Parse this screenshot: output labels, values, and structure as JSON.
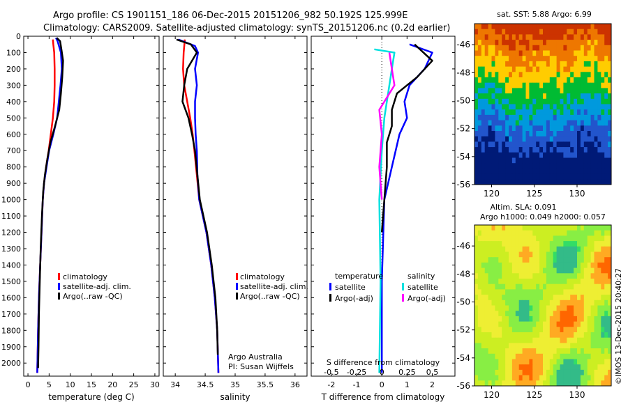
{
  "header": {
    "line1": "Argo profile: CS 1901151_186 06-Dec-2015 20151206_982 50.192S 125.999E",
    "line2": "Climatology: CARS2009. Satellite-adjusted climatology: synTS_20151206.nc (0.2d earlier)"
  },
  "colors": {
    "clim": "#ff0000",
    "sat": "#0000ff",
    "argo": "#000000",
    "sat_s": "#00e0e0",
    "argo_s": "#ff00ff"
  },
  "depth_axis": {
    "ylim": [
      2080,
      0
    ],
    "ticks": [
      0,
      100,
      200,
      300,
      400,
      500,
      600,
      700,
      800,
      900,
      1000,
      1100,
      1200,
      1300,
      1400,
      1500,
      1600,
      1700,
      1800,
      1900,
      2000
    ]
  },
  "chart_data": [
    {
      "type": "line",
      "xlabel": "temperature (deg C)",
      "xlim": [
        -1,
        31
      ],
      "xticks": [
        0,
        5,
        10,
        15,
        20,
        25,
        30
      ],
      "legend": [
        "climatology",
        "satellite-adj. clim.",
        "Argo(..raw -QC)"
      ],
      "series": [
        {
          "name": "climatology",
          "color": "#ff0000",
          "points": [
            [
              5.9,
              20
            ],
            [
              6.0,
              50
            ],
            [
              6.2,
              100
            ],
            [
              6.3,
              200
            ],
            [
              6.3,
              300
            ],
            [
              6.2,
              400
            ],
            [
              5.9,
              500
            ],
            [
              5.4,
              600
            ],
            [
              4.9,
              700
            ],
            [
              4.3,
              800
            ],
            [
              3.8,
              900
            ],
            [
              3.5,
              1000
            ],
            [
              3.2,
              1200
            ],
            [
              2.9,
              1400
            ],
            [
              2.6,
              1600
            ],
            [
              2.4,
              1800
            ],
            [
              2.2,
              2060
            ]
          ]
        },
        {
          "name": "satellite-adj. clim.",
          "color": "#0000ff",
          "points": [
            [
              6.6,
              10
            ],
            [
              7.0,
              30
            ],
            [
              7.8,
              100
            ],
            [
              8.0,
              200
            ],
            [
              7.7,
              300
            ],
            [
              7.3,
              400
            ],
            [
              6.9,
              500
            ],
            [
              6.0,
              600
            ],
            [
              5.0,
              700
            ],
            [
              4.4,
              800
            ],
            [
              3.8,
              900
            ],
            [
              3.5,
              1000
            ],
            [
              3.2,
              1200
            ],
            [
              2.9,
              1400
            ],
            [
              2.6,
              1600
            ],
            [
              2.4,
              1800
            ],
            [
              2.2,
              2060
            ]
          ]
        },
        {
          "name": "Argo(..raw -QC)",
          "color": "#000000",
          "points": [
            [
              6.8,
              10
            ],
            [
              7.6,
              30
            ],
            [
              7.9,
              80
            ],
            [
              8.3,
              150
            ],
            [
              8.1,
              250
            ],
            [
              7.8,
              350
            ],
            [
              7.4,
              450
            ],
            [
              6.4,
              550
            ],
            [
              5.3,
              650
            ],
            [
              4.6,
              750
            ],
            [
              4.0,
              850
            ],
            [
              3.6,
              950
            ],
            [
              3.3,
              1100
            ],
            [
              3.0,
              1300
            ],
            [
              2.8,
              1500
            ],
            [
              2.6,
              1700
            ],
            [
              2.5,
              1900
            ],
            [
              2.4,
              2030
            ]
          ]
        }
      ]
    },
    {
      "type": "line",
      "xlabel": "salinity",
      "xlim": [
        33.8,
        36.2
      ],
      "xticks": [
        34,
        34.5,
        35,
        35.5,
        36
      ],
      "legend": [
        "climatology",
        "satellite-adj. clim.",
        "Argo(..raw -QC)"
      ],
      "annotation": [
        "Argo Australia",
        "PI: Susan Wijffels"
      ],
      "series": [
        {
          "name": "climatology",
          "color": "#ff0000",
          "points": [
            [
              34.16,
              20
            ],
            [
              34.14,
              100
            ],
            [
              34.13,
              200
            ],
            [
              34.15,
              300
            ],
            [
              34.2,
              400
            ],
            [
              34.25,
              500
            ],
            [
              34.29,
              600
            ],
            [
              34.32,
              700
            ],
            [
              34.36,
              850
            ],
            [
              34.4,
              1000
            ],
            [
              34.52,
              1200
            ],
            [
              34.6,
              1400
            ],
            [
              34.66,
              1600
            ],
            [
              34.7,
              1800
            ],
            [
              34.72,
              2060
            ]
          ]
        },
        {
          "name": "satellite-adj. clim.",
          "color": "#0000ff",
          "points": [
            [
              34.05,
              20
            ],
            [
              34.33,
              60
            ],
            [
              34.38,
              100
            ],
            [
              34.33,
              200
            ],
            [
              34.36,
              300
            ],
            [
              34.33,
              400
            ],
            [
              34.33,
              500
            ],
            [
              34.34,
              600
            ],
            [
              34.36,
              700
            ],
            [
              34.37,
              850
            ],
            [
              34.4,
              1000
            ],
            [
              34.52,
              1200
            ],
            [
              34.6,
              1400
            ],
            [
              34.66,
              1600
            ],
            [
              34.7,
              1800
            ],
            [
              34.72,
              2060
            ]
          ]
        },
        {
          "name": "Argo(..raw -QC)",
          "color": "#000000",
          "points": [
            [
              34.02,
              20
            ],
            [
              34.26,
              50
            ],
            [
              34.36,
              100
            ],
            [
              34.2,
              200
            ],
            [
              34.15,
              300
            ],
            [
              34.12,
              400
            ],
            [
              34.22,
              500
            ],
            [
              34.28,
              600
            ],
            [
              34.33,
              700
            ],
            [
              34.37,
              850
            ],
            [
              34.41,
              1000
            ],
            [
              34.53,
              1200
            ],
            [
              34.61,
              1400
            ],
            [
              34.67,
              1600
            ],
            [
              34.7,
              1800
            ],
            [
              34.71,
              1950
            ]
          ]
        }
      ]
    },
    {
      "type": "line",
      "xlabel": "T difference from climatology",
      "xlim": [
        -2.8,
        2.9
      ],
      "xticks": [
        -2,
        -1,
        0,
        1,
        2
      ],
      "top_axis_label": "S difference from climatology",
      "top_ticks": [
        -0.5,
        -0.25,
        0,
        0.25,
        0.5
      ],
      "legend_headers": [
        "temperature",
        "salinity"
      ],
      "legend": [
        "satellite",
        "Argo(-adj)",
        "satellite",
        "Argo(-adj)"
      ],
      "series": [
        {
          "name": "satellite",
          "color": "#0000ff",
          "points": [
            [
              1.1,
              50
            ],
            [
              2.0,
              100
            ],
            [
              1.7,
              200
            ],
            [
              1.1,
              300
            ],
            [
              0.9,
              400
            ],
            [
              1.0,
              500
            ],
            [
              0.7,
              600
            ],
            [
              0.4,
              800
            ],
            [
              0.1,
              1000
            ],
            [
              0.0,
              1500
            ],
            [
              0.0,
              2060
            ]
          ]
        },
        {
          "name": "Argo(-adj)",
          "color": "#000000",
          "points": [
            [
              1.3,
              50
            ],
            [
              2.0,
              150
            ],
            [
              1.4,
              250
            ],
            [
              0.6,
              350
            ],
            [
              0.4,
              450
            ],
            [
              0.4,
              550
            ],
            [
              0.2,
              650
            ],
            [
              0.2,
              800
            ],
            [
              0.1,
              1000
            ],
            [
              0.0,
              1200
            ]
          ]
        },
        {
          "name": "satellite",
          "color": "#00e0e0",
          "points": [
            [
              -0.3,
              80
            ],
            [
              0.5,
              100
            ],
            [
              0.4,
              200
            ],
            [
              0.3,
              300
            ],
            [
              0.1,
              500
            ],
            [
              0.0,
              700
            ],
            [
              -0.1,
              1000
            ],
            [
              -0.05,
              1500
            ],
            [
              -0.1,
              2060
            ]
          ]
        },
        {
          "name": "Argo(-adj)",
          "color": "#ff00ff",
          "points": [
            [
              0.3,
              100
            ],
            [
              0.4,
              200
            ],
            [
              0.5,
              300
            ],
            [
              -0.1,
              450
            ],
            [
              0.0,
              600
            ],
            [
              -0.1,
              800
            ],
            [
              0.0,
              1000
            ]
          ]
        }
      ]
    },
    {
      "type": "heatmap",
      "title": "sat. SST: 5.88  Argo: 6.99",
      "xlim": [
        118,
        134
      ],
      "ylim": [
        -56,
        -44.5
      ],
      "xticks": [
        120,
        125,
        130
      ],
      "yticks": [
        -46,
        -48,
        -50,
        -52,
        -54,
        -56
      ],
      "colors": [
        "#cc3300",
        "#ee7700",
        "#ffcc00",
        "#00bb33",
        "#0099dd",
        "#2255cc",
        "#001a77"
      ]
    },
    {
      "type": "heatmap",
      "title": "Altim. SLA: 0.091",
      "subtitle": "Argo h1000: 0.049 h2000: 0.057",
      "xlim": [
        118,
        134
      ],
      "ylim": [
        -56,
        -44.5
      ],
      "xticks": [
        120,
        125,
        130
      ],
      "yticks": [
        -46,
        -48,
        -50,
        -52,
        -54,
        -56
      ],
      "colors": [
        "#33dd66",
        "#88ee44",
        "#ccee22",
        "#eeee33",
        "#ffaa22",
        "#ff6600",
        "#33bb88"
      ]
    }
  ],
  "side_label": "©IMOS 13-Dec-2015 20:40:27"
}
